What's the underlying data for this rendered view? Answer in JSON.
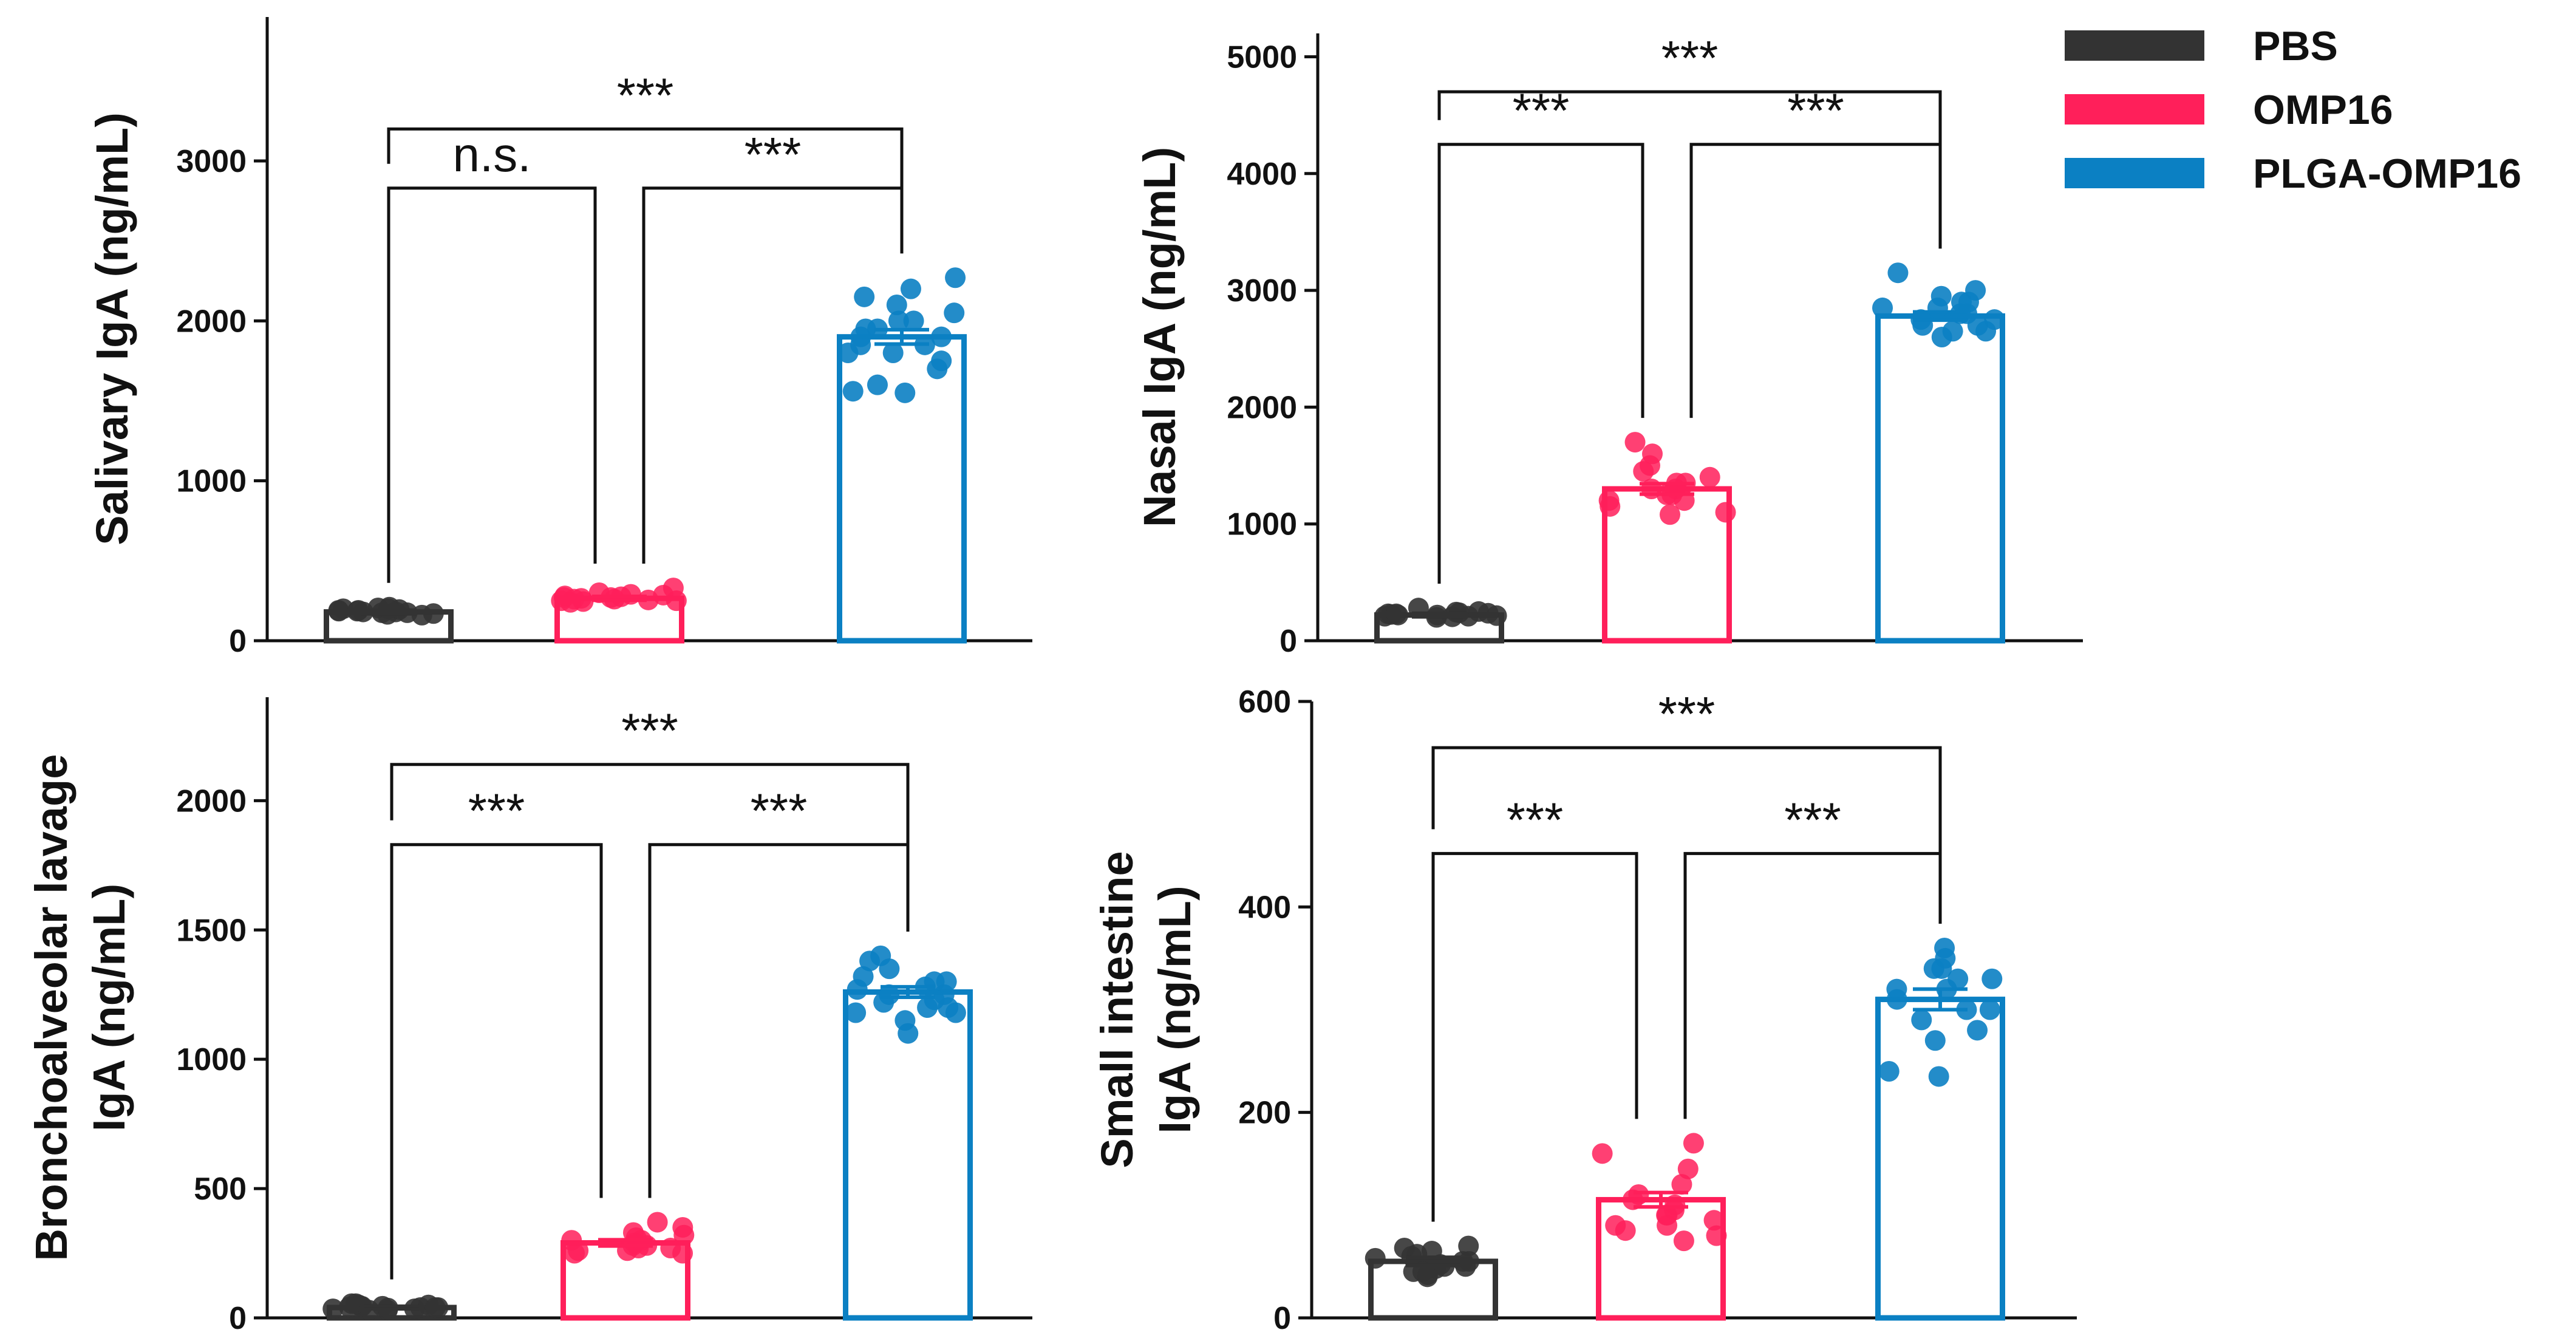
{
  "legend": [
    {
      "label": "PBS",
      "color": "#333333"
    },
    {
      "label": "OMP16",
      "color": "#ff1f5a"
    },
    {
      "label": "PLGA-OMP16",
      "color": "#0b80c3"
    }
  ],
  "chart_data": [
    {
      "type": "bar",
      "ylabel": [
        "Salivary IgA (ng/mL)"
      ],
      "ylim": [
        0,
        3900
      ],
      "yticks": [
        0,
        1000,
        2000,
        3000
      ],
      "categories": [
        "PBS",
        "OMP16",
        "PLGA-OMP16"
      ],
      "values": [
        180,
        265,
        1900
      ],
      "sem": [
        12,
        12,
        45
      ],
      "points": [
        [
          165,
          180,
          200,
          190,
          175,
          210,
          185,
          170,
          195,
          205,
          180,
          160,
          175,
          190,
          200,
          185
        ],
        [
          250,
          270,
          260,
          280,
          255,
          300,
          330,
          240,
          270,
          265,
          285,
          250,
          260,
          275,
          290,
          245
        ],
        [
          1550,
          1600,
          1700,
          1750,
          1800,
          1850,
          1900,
          1950,
          2000,
          2050,
          2100,
          2150,
          2200,
          2270,
          1850,
          1900,
          1950,
          1800,
          1560,
          2000
        ]
      ],
      "comparisons": [
        {
          "a": 0,
          "b": 1,
          "label": "n.s."
        },
        {
          "a": 1,
          "b": 2,
          "label": "***"
        },
        {
          "a": 0,
          "b": 2,
          "label": "***"
        }
      ]
    },
    {
      "type": "bar",
      "ylabel": [
        "Nasal IgA (ng/mL)"
      ],
      "ylim": [
        0,
        5200
      ],
      "yticks": [
        0,
        1000,
        2000,
        3000,
        4000,
        5000
      ],
      "categories": [
        "PBS",
        "OMP16",
        "PLGA-OMP16"
      ],
      "values": [
        220,
        1300,
        2780
      ],
      "sem": [
        15,
        45,
        35
      ],
      "points": [
        [
          200,
          220,
          240,
          210,
          230,
          250,
          215,
          225,
          235,
          205,
          245,
          280,
          210,
          230,
          220
        ],
        [
          1100,
          1150,
          1200,
          1250,
          1300,
          1350,
          1400,
          1450,
          1500,
          1600,
          1700,
          1080,
          1250,
          1300,
          1350,
          1200
        ],
        [
          2600,
          2650,
          2700,
          2750,
          2800,
          2850,
          2900,
          2950,
          3000,
          3150,
          2700,
          2800,
          2750,
          2850,
          2900,
          2650
        ]
      ],
      "comparisons": [
        {
          "a": 0,
          "b": 1,
          "label": "***"
        },
        {
          "a": 1,
          "b": 2,
          "label": "***"
        },
        {
          "a": 0,
          "b": 2,
          "label": "***"
        }
      ]
    },
    {
      "type": "bar",
      "ylabel": [
        "Bronchoalveolar lavage",
        "IgA (ng/mL)"
      ],
      "ylim": [
        0,
        2400
      ],
      "yticks": [
        0,
        500,
        1000,
        1500,
        2000
      ],
      "categories": [
        "PBS",
        "OMP16",
        "PLGA-OMP16"
      ],
      "values": [
        40,
        290,
        1260
      ],
      "sem": [
        5,
        12,
        20
      ],
      "points": [
        [
          30,
          40,
          50,
          45,
          35,
          55,
          40,
          30,
          45,
          50,
          35,
          40,
          45,
          55,
          38,
          42
        ],
        [
          250,
          270,
          280,
          300,
          320,
          350,
          370,
          260,
          280,
          290,
          310,
          250,
          270,
          300,
          330,
          260
        ],
        [
          1100,
          1150,
          1180,
          1200,
          1220,
          1250,
          1280,
          1300,
          1320,
          1350,
          1380,
          1400,
          1250,
          1270,
          1200,
          1180,
          1300,
          1230
        ]
      ],
      "comparisons": [
        {
          "a": 0,
          "b": 1,
          "label": "***"
        },
        {
          "a": 1,
          "b": 2,
          "label": "***"
        },
        {
          "a": 0,
          "b": 2,
          "label": "***"
        }
      ]
    },
    {
      "type": "bar",
      "ylabel": [
        "Small intestine",
        "IgA (ng/mL)"
      ],
      "ylim": [
        0,
        600
      ],
      "yticks": [
        0,
        200,
        400,
        600
      ],
      "categories": [
        "PBS",
        "OMP16",
        "PLGA-OMP16"
      ],
      "values": [
        55,
        115,
        310
      ],
      "sem": [
        4,
        7,
        10
      ],
      "points": [
        [
          40,
          45,
          50,
          55,
          60,
          65,
          70,
          48,
          52,
          58,
          62,
          45,
          55,
          68,
          42,
          50
        ],
        [
          80,
          85,
          90,
          100,
          110,
          120,
          130,
          145,
          160,
          170,
          95,
          105,
          115,
          75,
          90,
          100
        ],
        [
          235,
          240,
          270,
          290,
          300,
          310,
          320,
          330,
          340,
          350,
          360,
          280,
          300,
          320,
          330,
          340
        ]
      ],
      "comparisons": [
        {
          "a": 0,
          "b": 1,
          "label": "***"
        },
        {
          "a": 1,
          "b": 2,
          "label": "***"
        },
        {
          "a": 0,
          "b": 2,
          "label": "***"
        }
      ]
    }
  ]
}
